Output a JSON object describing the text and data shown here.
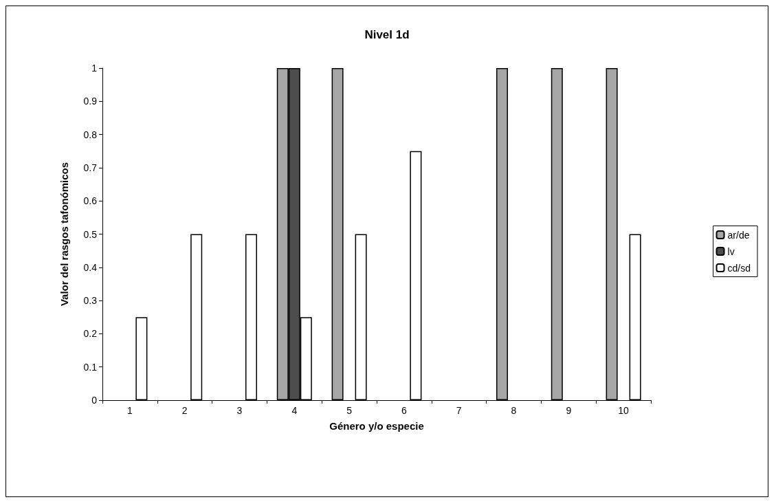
{
  "chart_data": {
    "type": "bar",
    "title": "Nivel 1d",
    "xlabel": "Género y/o especie",
    "ylabel": "Valor del rasgos tafonómicos",
    "categories": [
      "1",
      "2",
      "3",
      "4",
      "5",
      "6",
      "7",
      "8",
      "9",
      "10"
    ],
    "series": [
      {
        "name": "ar/de",
        "color": "#a6a6a6",
        "values": [
          0,
          0,
          0,
          1,
          1,
          0,
          0,
          1,
          1,
          1
        ]
      },
      {
        "name": "lv",
        "color": "#4d4d4d",
        "values": [
          0,
          0,
          0,
          1,
          0,
          0,
          0,
          0,
          0,
          0
        ]
      },
      {
        "name": "cd/sd",
        "color": "#ffffff",
        "values": [
          0.25,
          0.5,
          0.5,
          0.25,
          0.5,
          0.75,
          0,
          0,
          0,
          0.5
        ]
      }
    ],
    "ylim": [
      0,
      1
    ],
    "yticks": [
      0,
      0.1,
      0.2,
      0.3,
      0.4,
      0.5,
      0.6,
      0.7,
      0.8,
      0.9,
      1
    ],
    "grid": false,
    "legend": "right"
  }
}
